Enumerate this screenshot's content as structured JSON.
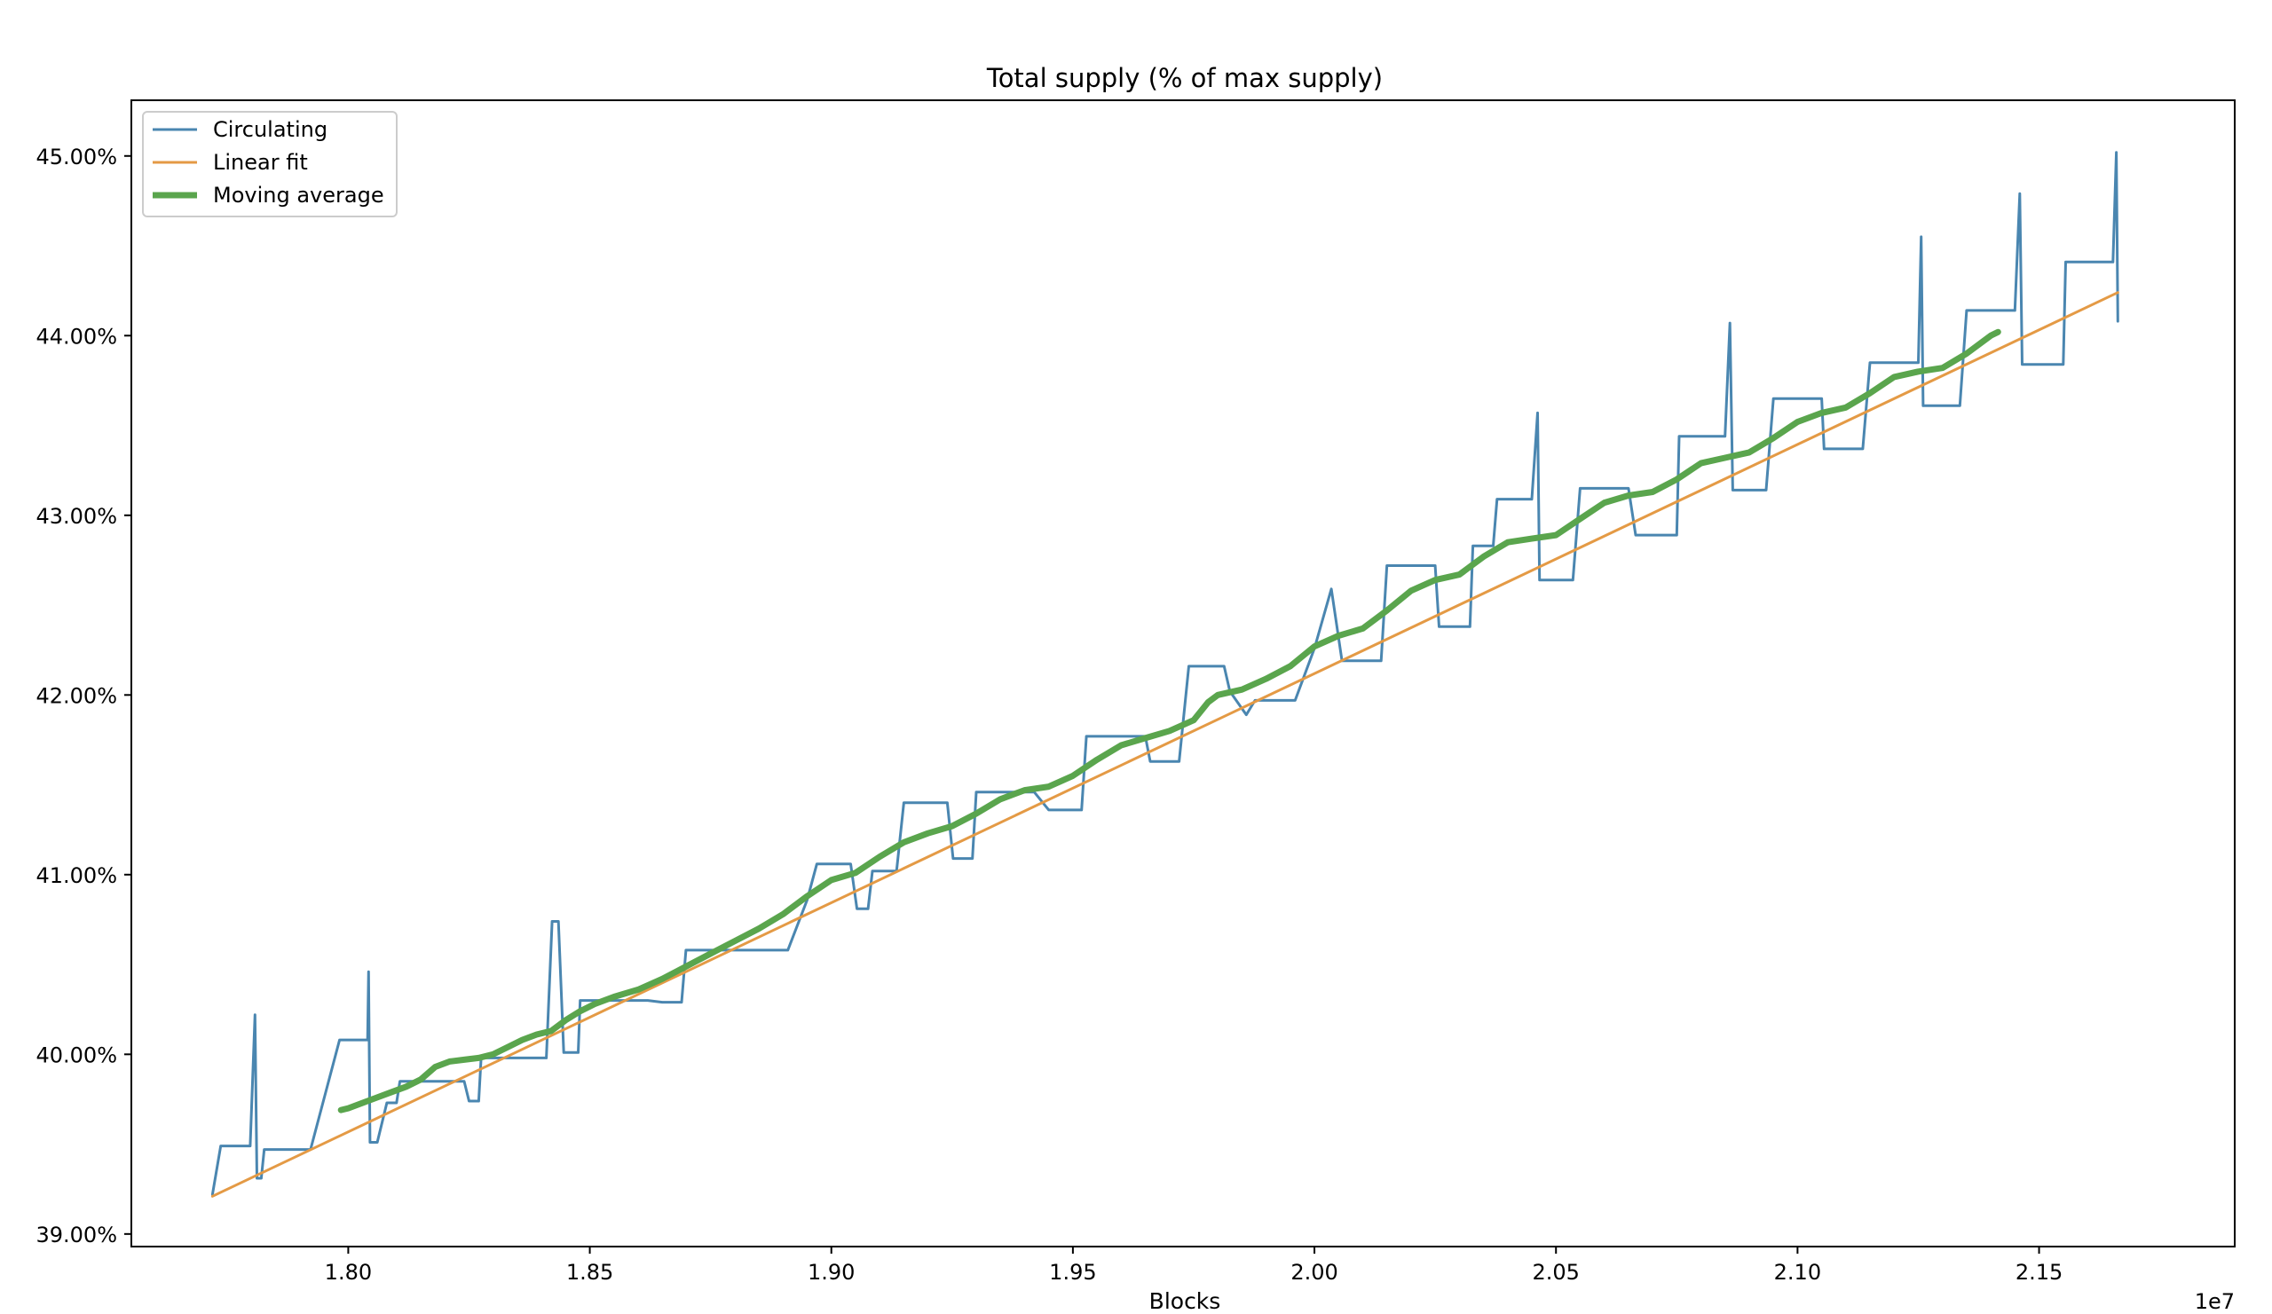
{
  "chart_data": {
    "type": "line",
    "title": "Total supply (% of max supply)",
    "xlabel": "Blocks",
    "ylabel": "",
    "x_offset_label": "1e7",
    "xlim": [
      1.7551,
      2.1905
    ],
    "ylim": [
      38.93,
      45.31
    ],
    "x_ticks": [
      1.8,
      1.85,
      1.9,
      1.95,
      2.0,
      2.05,
      2.1,
      2.15
    ],
    "x_tick_labels": [
      "1.80",
      "1.85",
      "1.90",
      "1.95",
      "2.00",
      "2.05",
      "2.10",
      "2.15"
    ],
    "y_ticks": [
      39,
      40,
      41,
      42,
      43,
      44,
      45
    ],
    "y_tick_labels": [
      "39.00%",
      "40.00%",
      "41.00%",
      "42.00%",
      "43.00%",
      "44.00%",
      "45.00%"
    ],
    "grid": false,
    "legend_position": "upper-left",
    "series": [
      {
        "name": "Circulating",
        "color": "#4a86b0",
        "width": 3,
        "points": [
          [
            1.7719,
            39.22
          ],
          [
            1.7736,
            39.49
          ],
          [
            1.776,
            39.49
          ],
          [
            1.7786,
            39.49
          ],
          [
            1.7797,
            39.49
          ],
          [
            1.7807,
            40.22
          ],
          [
            1.7811,
            39.31
          ],
          [
            1.782,
            39.31
          ],
          [
            1.7826,
            39.47
          ],
          [
            1.786,
            39.47
          ],
          [
            1.7882,
            39.47
          ],
          [
            1.7922,
            39.47
          ],
          [
            1.7982,
            40.08
          ],
          [
            1.8,
            40.08
          ],
          [
            1.804,
            40.08
          ],
          [
            1.8042,
            40.46
          ],
          [
            1.8045,
            39.51
          ],
          [
            1.806,
            39.51
          ],
          [
            1.808,
            39.73
          ],
          [
            1.81,
            39.73
          ],
          [
            1.8107,
            39.85
          ],
          [
            1.815,
            39.85
          ],
          [
            1.82,
            39.85
          ],
          [
            1.824,
            39.85
          ],
          [
            1.825,
            39.74
          ],
          [
            1.827,
            39.74
          ],
          [
            1.8275,
            39.98
          ],
          [
            1.835,
            39.98
          ],
          [
            1.841,
            39.98
          ],
          [
            1.8422,
            40.74
          ],
          [
            1.8435,
            40.74
          ],
          [
            1.8446,
            40.01
          ],
          [
            1.8476,
            40.01
          ],
          [
            1.848,
            40.3
          ],
          [
            1.859,
            40.3
          ],
          [
            1.862,
            40.3
          ],
          [
            1.865,
            40.29
          ],
          [
            1.869,
            40.29
          ],
          [
            1.8699,
            40.58
          ],
          [
            1.875,
            40.58
          ],
          [
            1.891,
            40.58
          ],
          [
            1.895,
            40.86
          ],
          [
            1.897,
            41.06
          ],
          [
            1.904,
            41.06
          ],
          [
            1.9053,
            40.81
          ],
          [
            1.9076,
            40.81
          ],
          [
            1.9085,
            41.02
          ],
          [
            1.9135,
            41.02
          ],
          [
            1.915,
            41.4
          ],
          [
            1.924,
            41.4
          ],
          [
            1.9252,
            41.09
          ],
          [
            1.9292,
            41.09
          ],
          [
            1.93,
            41.46
          ],
          [
            1.942,
            41.46
          ],
          [
            1.945,
            41.36
          ],
          [
            1.9518,
            41.36
          ],
          [
            1.9528,
            41.77
          ],
          [
            1.964,
            41.77
          ],
          [
            1.965,
            41.77
          ],
          [
            1.966,
            41.63
          ],
          [
            1.972,
            41.63
          ],
          [
            1.974,
            42.16
          ],
          [
            1.9813,
            42.16
          ],
          [
            1.9825,
            42.02
          ],
          [
            1.9859,
            41.89
          ],
          [
            1.9877,
            41.97
          ],
          [
            1.996,
            41.97
          ],
          [
            2.0,
            42.26
          ],
          [
            2.0035,
            42.59
          ],
          [
            2.0057,
            42.19
          ],
          [
            2.0138,
            42.19
          ],
          [
            2.015,
            42.72
          ],
          [
            2.025,
            42.72
          ],
          [
            2.0258,
            42.38
          ],
          [
            2.0322,
            42.38
          ],
          [
            2.0328,
            42.83
          ],
          [
            2.037,
            42.83
          ],
          [
            2.0378,
            43.09
          ],
          [
            2.045,
            43.09
          ],
          [
            2.0462,
            43.57
          ],
          [
            2.0466,
            42.64
          ],
          [
            2.0535,
            42.64
          ],
          [
            2.055,
            43.15
          ],
          [
            2.065,
            43.15
          ],
          [
            2.0665,
            42.89
          ],
          [
            2.075,
            42.89
          ],
          [
            2.0755,
            43.44
          ],
          [
            2.085,
            43.44
          ],
          [
            2.086,
            44.07
          ],
          [
            2.0866,
            43.14
          ],
          [
            2.0935,
            43.14
          ],
          [
            2.095,
            43.65
          ],
          [
            2.105,
            43.65
          ],
          [
            2.1055,
            43.37
          ],
          [
            2.1135,
            43.37
          ],
          [
            2.115,
            43.85
          ],
          [
            2.125,
            43.85
          ],
          [
            2.1256,
            44.55
          ],
          [
            2.126,
            43.61
          ],
          [
            2.1336,
            43.61
          ],
          [
            2.135,
            44.14
          ],
          [
            2.145,
            44.14
          ],
          [
            2.146,
            44.79
          ],
          [
            2.1465,
            43.84
          ],
          [
            2.155,
            43.84
          ],
          [
            2.1555,
            44.41
          ],
          [
            2.1653,
            44.41
          ],
          [
            2.166,
            45.02
          ],
          [
            2.1663,
            44.08
          ]
        ]
      },
      {
        "name": "Linear fit",
        "color": "#e49a45",
        "width": 3,
        "points": [
          [
            1.7719,
            39.21
          ],
          [
            2.1663,
            44.24
          ]
        ]
      },
      {
        "name": "Moving average",
        "color": "#5aa54d",
        "width": 7,
        "points": [
          [
            1.7985,
            39.69
          ],
          [
            1.8,
            39.7
          ],
          [
            1.803,
            39.73
          ],
          [
            1.806,
            39.76
          ],
          [
            1.809,
            39.79
          ],
          [
            1.812,
            39.82
          ],
          [
            1.815,
            39.86
          ],
          [
            1.818,
            39.93
          ],
          [
            1.821,
            39.96
          ],
          [
            1.824,
            39.97
          ],
          [
            1.827,
            39.98
          ],
          [
            1.83,
            40.0
          ],
          [
            1.833,
            40.04
          ],
          [
            1.836,
            40.08
          ],
          [
            1.839,
            40.11
          ],
          [
            1.842,
            40.13
          ],
          [
            1.845,
            40.19
          ],
          [
            1.848,
            40.24
          ],
          [
            1.851,
            40.28
          ],
          [
            1.855,
            40.32
          ],
          [
            1.86,
            40.36
          ],
          [
            1.865,
            40.42
          ],
          [
            1.87,
            40.49
          ],
          [
            1.875,
            40.56
          ],
          [
            1.88,
            40.63
          ],
          [
            1.885,
            40.7
          ],
          [
            1.89,
            40.78
          ],
          [
            1.895,
            40.88
          ],
          [
            1.9,
            40.97
          ],
          [
            1.905,
            41.01
          ],
          [
            1.91,
            41.1
          ],
          [
            1.915,
            41.18
          ],
          [
            1.92,
            41.23
          ],
          [
            1.925,
            41.27
          ],
          [
            1.93,
            41.34
          ],
          [
            1.935,
            41.42
          ],
          [
            1.94,
            41.47
          ],
          [
            1.945,
            41.49
          ],
          [
            1.95,
            41.55
          ],
          [
            1.955,
            41.64
          ],
          [
            1.96,
            41.72
          ],
          [
            1.965,
            41.76
          ],
          [
            1.97,
            41.8
          ],
          [
            1.975,
            41.86
          ],
          [
            1.978,
            41.96
          ],
          [
            1.98,
            42.0
          ],
          [
            1.985,
            42.03
          ],
          [
            1.99,
            42.09
          ],
          [
            1.995,
            42.16
          ],
          [
            2.0,
            42.27
          ],
          [
            2.005,
            42.33
          ],
          [
            2.01,
            42.37
          ],
          [
            2.015,
            42.47
          ],
          [
            2.02,
            42.58
          ],
          [
            2.025,
            42.64
          ],
          [
            2.03,
            42.67
          ],
          [
            2.035,
            42.77
          ],
          [
            2.04,
            42.85
          ],
          [
            2.045,
            42.87
          ],
          [
            2.05,
            42.89
          ],
          [
            2.055,
            42.98
          ],
          [
            2.06,
            43.07
          ],
          [
            2.065,
            43.11
          ],
          [
            2.07,
            43.13
          ],
          [
            2.075,
            43.2
          ],
          [
            2.08,
            43.29
          ],
          [
            2.085,
            43.32
          ],
          [
            2.09,
            43.35
          ],
          [
            2.095,
            43.43
          ],
          [
            2.1,
            43.52
          ],
          [
            2.105,
            43.57
          ],
          [
            2.11,
            43.6
          ],
          [
            2.115,
            43.68
          ],
          [
            2.12,
            43.77
          ],
          [
            2.125,
            43.8
          ],
          [
            2.13,
            43.82
          ],
          [
            2.135,
            43.9
          ],
          [
            2.14,
            44.0
          ],
          [
            2.1415,
            44.02
          ]
        ]
      }
    ]
  }
}
